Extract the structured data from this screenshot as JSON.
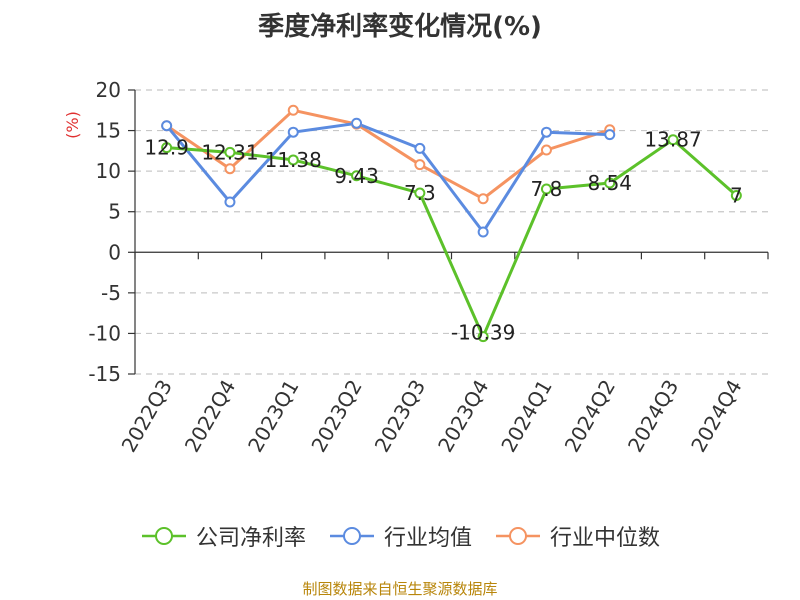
{
  "chart_data": {
    "type": "line",
    "title": "季度净利率变化情况(%)",
    "ylabel": "(%)",
    "xlabel": "",
    "categories": [
      "2022Q3",
      "2022Q4",
      "2023Q1",
      "2023Q2",
      "2023Q3",
      "2023Q4",
      "2024Q1",
      "2024Q2",
      "2024Q3",
      "2024Q4"
    ],
    "ylim": [
      -15,
      20
    ],
    "yticks": [
      -15,
      -10,
      -5,
      0,
      5,
      10,
      15,
      20
    ],
    "grid": true,
    "legend_position": "bottom",
    "series": [
      {
        "name": "公司净利率",
        "color": "#5cc12a",
        "show_labels": true,
        "values": [
          12.9,
          12.31,
          11.38,
          9.43,
          7.3,
          -10.39,
          7.8,
          8.54,
          13.87,
          7
        ],
        "labels": [
          "12.9",
          "12.31",
          "11.38",
          "9.43",
          "7.3",
          "-10.39",
          "7.8",
          "8.54",
          "13.87",
          "7"
        ]
      },
      {
        "name": "行业均值",
        "color": "#5b8be0",
        "show_labels": false,
        "values": [
          15.6,
          6.2,
          14.8,
          15.9,
          12.8,
          2.5,
          14.8,
          14.5,
          null,
          null
        ]
      },
      {
        "name": "行业中位数",
        "color": "#f59361",
        "show_labels": false,
        "values": [
          15.6,
          10.3,
          17.5,
          15.8,
          10.8,
          6.6,
          12.6,
          15.1,
          null,
          null
        ]
      }
    ]
  },
  "source_note": "制图数据来自恒生聚源数据库"
}
